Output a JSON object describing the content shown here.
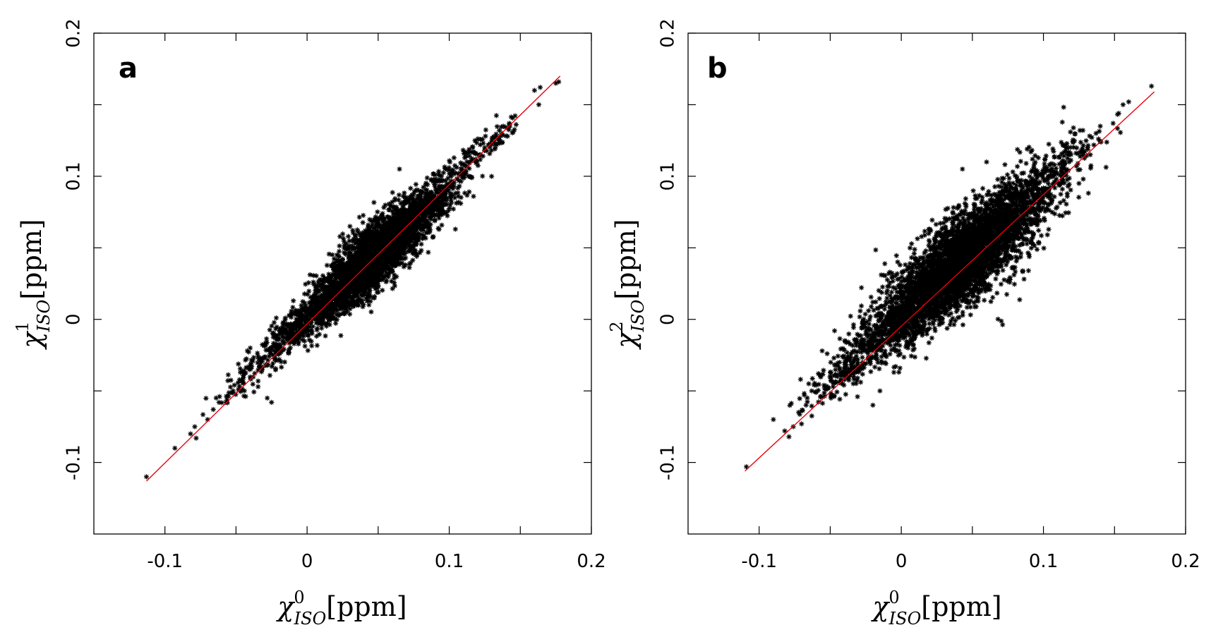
{
  "chart_data": [
    {
      "type": "scatter",
      "panel_label": "a",
      "xlabel": {
        "symbol": "χ",
        "sub": "ISO",
        "sup": "0",
        "unit": "[ppm]"
      },
      "ylabel": {
        "symbol": "χ",
        "sub": "ISO",
        "sup": "1",
        "unit": "[ppm]"
      },
      "xlim": [
        -0.15,
        0.2
      ],
      "ylim": [
        -0.15,
        0.2
      ],
      "xticks": [
        -0.1,
        0,
        0.1,
        0.2
      ],
      "xtick_labels": [
        "-0.1",
        "0",
        "0.1",
        "0.2"
      ],
      "xminor": [
        -0.05,
        0.05,
        0.15
      ],
      "yticks": [
        -0.1,
        0,
        0.1,
        0.2
      ],
      "ytick_labels": [
        "-0.1",
        "0",
        "0.1",
        "0.2"
      ],
      "yminor": [
        -0.05,
        0.05,
        0.15
      ],
      "grid": false,
      "fit_line": {
        "color": "#e8000b",
        "x": [
          -0.113,
          0.178
        ],
        "y": [
          -0.113,
          0.17
        ]
      },
      "series": [
        {
          "marker": "star",
          "color": "#000000",
          "clusters": [
            {
              "cx": 0.045,
              "cy": 0.042,
              "sx": 0.02,
              "sy": 0.02,
              "rho": 0.82,
              "n": 2600
            },
            {
              "cx": 0.07,
              "cy": 0.066,
              "sx": 0.022,
              "sy": 0.02,
              "rho": 0.9,
              "n": 700
            },
            {
              "cx": 0.0,
              "cy": 0.001,
              "sx": 0.017,
              "sy": 0.016,
              "rho": 0.88,
              "n": 450
            },
            {
              "cx": 0.12,
              "cy": 0.116,
              "sx": 0.016,
              "sy": 0.015,
              "rho": 0.93,
              "n": 120
            },
            {
              "cx": -0.035,
              "cy": -0.034,
              "sx": 0.014,
              "sy": 0.013,
              "rho": 0.85,
              "n": 90
            }
          ],
          "extra_points": [
            [
              -0.113,
              -0.11
            ],
            [
              -0.093,
              -0.09
            ],
            [
              -0.082,
              -0.08
            ],
            [
              -0.079,
              -0.075
            ],
            [
              -0.078,
              -0.083
            ],
            [
              -0.07,
              -0.07
            ],
            [
              -0.066,
              -0.063
            ],
            [
              -0.062,
              -0.058
            ],
            [
              -0.057,
              -0.058
            ],
            [
              -0.052,
              -0.05
            ],
            [
              -0.045,
              -0.044
            ],
            [
              -0.042,
              -0.022
            ],
            [
              -0.04,
              -0.02
            ],
            [
              -0.028,
              -0.055
            ],
            [
              -0.025,
              -0.058
            ],
            [
              0.029,
              0.058
            ],
            [
              0.03,
              0.025
            ],
            [
              0.065,
              0.105
            ],
            [
              0.101,
              0.096
            ],
            [
              0.125,
              0.12
            ],
            [
              0.13,
              0.125
            ],
            [
              0.132,
              0.119
            ],
            [
              0.138,
              0.135
            ],
            [
              0.141,
              0.128
            ],
            [
              0.145,
              0.131
            ],
            [
              0.16,
              0.16
            ],
            [
              0.163,
              0.15
            ],
            [
              0.175,
              0.165
            ],
            [
              0.177,
              0.166
            ]
          ]
        }
      ]
    },
    {
      "type": "scatter",
      "panel_label": "b",
      "xlabel": {
        "symbol": "χ",
        "sub": "ISO",
        "sup": "0",
        "unit": "[ppm]"
      },
      "ylabel": {
        "symbol": "χ",
        "sub": "ISO",
        "sup": "2",
        "unit": "[ppm]"
      },
      "xlim": [
        -0.15,
        0.2
      ],
      "ylim": [
        -0.15,
        0.2
      ],
      "xticks": [
        -0.1,
        0,
        0.1,
        0.2
      ],
      "xtick_labels": [
        "-0.1",
        "0",
        "0.1",
        "0.2"
      ],
      "xminor": [
        -0.05,
        0.05,
        0.15
      ],
      "yticks": [
        -0.1,
        0,
        0.1,
        0.2
      ],
      "ytick_labels": [
        "-0.1",
        "0",
        "0.1",
        "0.2"
      ],
      "yminor": [
        -0.05,
        0.05,
        0.15
      ],
      "grid": false,
      "fit_line": {
        "color": "#e8000b",
        "x": [
          -0.11,
          0.178
        ],
        "y": [
          -0.106,
          0.159
        ]
      },
      "series": [
        {
          "marker": "star",
          "color": "#000000",
          "clusters": [
            {
              "cx": 0.04,
              "cy": 0.038,
              "sx": 0.024,
              "sy": 0.023,
              "rho": 0.72,
              "n": 2900
            },
            {
              "cx": 0.07,
              "cy": 0.068,
              "sx": 0.022,
              "sy": 0.022,
              "rho": 0.78,
              "n": 800
            },
            {
              "cx": 0.0,
              "cy": 0.0,
              "sx": 0.02,
              "sy": 0.018,
              "rho": 0.78,
              "n": 650
            },
            {
              "cx": 0.11,
              "cy": 0.105,
              "sx": 0.017,
              "sy": 0.016,
              "rho": 0.85,
              "n": 150
            },
            {
              "cx": -0.04,
              "cy": -0.036,
              "sx": 0.016,
              "sy": 0.015,
              "rho": 0.82,
              "n": 170
            }
          ],
          "extra_points": [
            [
              -0.109,
              -0.103
            ],
            [
              -0.09,
              -0.07
            ],
            [
              -0.082,
              -0.078
            ],
            [
              -0.079,
              -0.082
            ],
            [
              -0.076,
              -0.075
            ],
            [
              -0.067,
              -0.06
            ],
            [
              -0.063,
              -0.05
            ],
            [
              -0.06,
              -0.046
            ],
            [
              -0.054,
              -0.048
            ],
            [
              -0.048,
              -0.047
            ],
            [
              -0.045,
              -0.04
            ],
            [
              -0.02,
              -0.06
            ],
            [
              -0.015,
              -0.05
            ],
            [
              0.02,
              0.063
            ],
            [
              0.043,
              0.105
            ],
            [
              0.06,
              0.11
            ],
            [
              0.118,
              0.11
            ],
            [
              0.125,
              0.095
            ],
            [
              0.128,
              0.098
            ],
            [
              0.131,
              0.12
            ],
            [
              0.133,
              0.115
            ],
            [
              0.137,
              0.13
            ],
            [
              0.14,
              0.135
            ],
            [
              0.149,
              0.137
            ],
            [
              0.153,
              0.144
            ],
            [
              0.156,
              0.15
            ],
            [
              0.16,
              0.152
            ],
            [
              0.176,
              0.163
            ]
          ]
        }
      ]
    }
  ]
}
